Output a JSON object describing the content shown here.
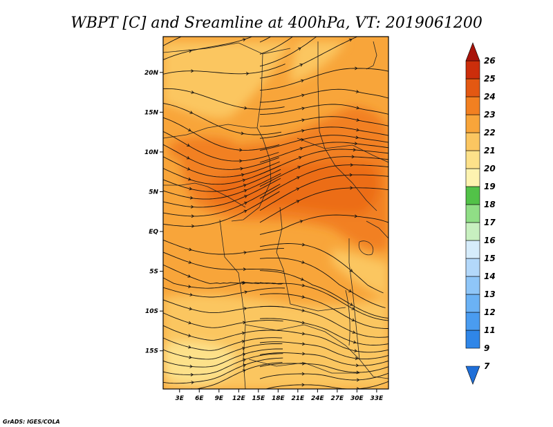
{
  "chart_data": {
    "type": "heatmap",
    "title": "WBPT [C] and Sreamline at 400hPa, VT: 2019061200",
    "credit": "GrADS: IGES/COLA",
    "x_ticks": [
      "3E",
      "6E",
      "9E",
      "12E",
      "15E",
      "18E",
      "21E",
      "24E",
      "27E",
      "30E",
      "33E"
    ],
    "x_tick_values": [
      3,
      6,
      9,
      12,
      15,
      18,
      21,
      24,
      27,
      30,
      33
    ],
    "y_ticks": [
      "20N",
      "15N",
      "10N",
      "5N",
      "EQ",
      "5S",
      "10S",
      "15S"
    ],
    "y_tick_values": [
      20,
      15,
      10,
      5,
      0,
      -5,
      -10,
      -15
    ],
    "xlim": [
      0.5,
      34.8
    ],
    "ylim": [
      -19.8,
      24.5
    ],
    "colorbar": {
      "labels": [
        "7",
        "9",
        "11",
        "12",
        "13",
        "14",
        "15",
        "16",
        "17",
        "18",
        "19",
        "20",
        "21",
        "22",
        "23",
        "24",
        "25",
        "26"
      ],
      "colors": [
        "#1f6fd8",
        "#2f86e8",
        "#4a9cf0",
        "#6bb2f5",
        "#8fc6f8",
        "#b3d8fa",
        "#d6ecfb",
        "#c8f0c0",
        "#90de86",
        "#52c248",
        "#fdf3b0",
        "#fde18a",
        "#fbc661",
        "#f8a53a",
        "#f28021",
        "#e35812",
        "#cc2e0b",
        "#a8130a"
      ]
    },
    "field": [
      {
        "region": "north band 15N-24N",
        "wbpt_c": 21
      },
      {
        "region": "core 3N-12N, 12E-33E",
        "wbpt_c": 23
      },
      {
        "region": "northwest 8N-12N, 0E-10E",
        "wbpt_c": 22
      },
      {
        "region": "northeast 12N-17N, 28E-33E",
        "wbpt_c": 22.5
      },
      {
        "region": "equatorial belt 5S-3N",
        "wbpt_c": 21.5
      },
      {
        "region": "south 20S-5S",
        "wbpt_c": 20.5
      }
    ]
  }
}
